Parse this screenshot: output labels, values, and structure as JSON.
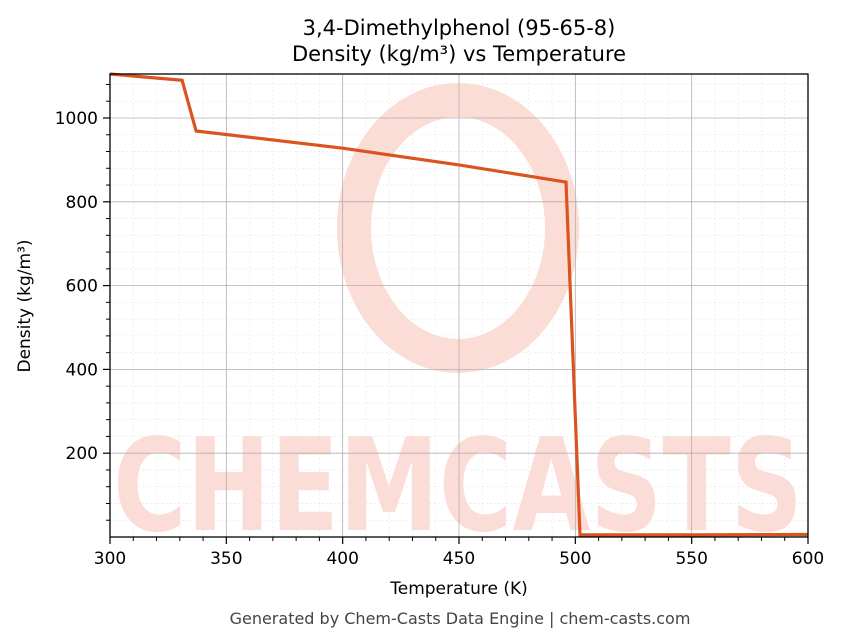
{
  "chart_data": {
    "type": "line",
    "title": "3,4-Dimethylphenol (95-65-8)",
    "subtitle": "Density (kg/m³) vs Temperature",
    "xlabel": "Temperature (K)",
    "ylabel": "Density (kg/m³)",
    "xlim": [
      300,
      600
    ],
    "ylim": [
      0,
      1105
    ],
    "x_ticks": [
      "300",
      "350",
      "400",
      "450",
      "500",
      "550",
      "600"
    ],
    "y_ticks": [
      "200",
      "400",
      "600",
      "800",
      "1000"
    ],
    "grid": true,
    "series": [
      {
        "color": "#d9541e",
        "x": [
          300,
          331,
          337,
          400,
          450,
          496,
          502,
          503,
          550,
          600
        ],
        "y": [
          1105,
          1090,
          969,
          928,
          888,
          847,
          5,
          5,
          5,
          6
        ]
      }
    ]
  },
  "watermark": {
    "text": "CHEMCASTS",
    "color": "#fbd9d2"
  },
  "footer": "Generated by Chem-Casts Data Engine | chem-casts.com"
}
